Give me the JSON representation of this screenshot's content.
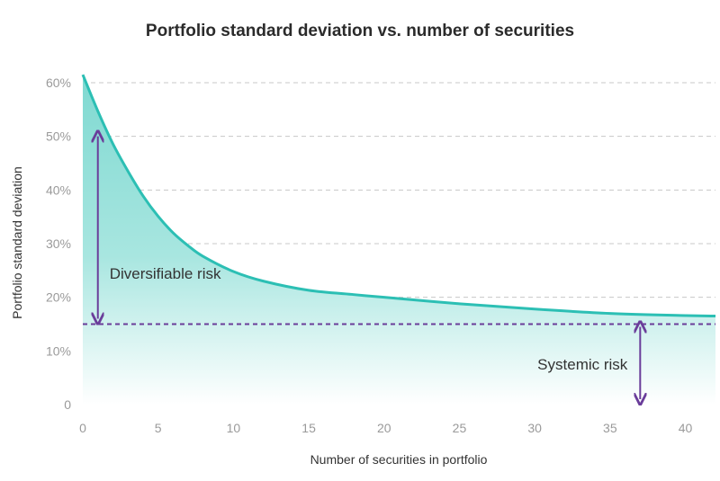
{
  "chart_data": {
    "type": "area",
    "title": "Portfolio standard deviation vs. number of securities",
    "xlabel": "Number of securities in portfolio",
    "ylabel": "Portfolio standard deviation",
    "xlim": [
      0,
      42
    ],
    "ylim": [
      0,
      60
    ],
    "x_ticks": [
      0,
      5,
      10,
      15,
      20,
      25,
      30,
      35,
      40
    ],
    "x_tick_labels": [
      "0",
      "5",
      "10",
      "15",
      "20",
      "25",
      "30",
      "35",
      "40"
    ],
    "y_ticks": [
      0,
      10,
      20,
      30,
      40,
      50,
      60
    ],
    "y_tick_labels": [
      "0",
      "10%",
      "20%",
      "30%",
      "40%",
      "50%",
      "60%"
    ],
    "grid": "horizontal-dashed",
    "series": [
      {
        "x": [
          0,
          1,
          2,
          3,
          4,
          5,
          6,
          7,
          8,
          10,
          12,
          15,
          18,
          20,
          25,
          30,
          35,
          40,
          42
        ],
        "values": [
          61.5,
          54.7,
          48.6,
          43.5,
          38.9,
          35.1,
          32.0,
          29.6,
          27.6,
          24.8,
          23.0,
          21.3,
          20.5,
          20.0,
          18.8,
          17.8,
          17.0,
          16.6,
          16.5
        ]
      }
    ],
    "systemic_level": 15,
    "annotations": [
      {
        "text": "Diversifiable risk",
        "arrow_x": 1,
        "arrow_from": 50,
        "arrow_to": 16
      },
      {
        "text": "Systemic risk",
        "arrow_x": 37,
        "arrow_from": 14.5,
        "arrow_to": 1
      }
    ],
    "colors": {
      "curve": "#2cbfb4",
      "fill_top": "#7fd9d1",
      "fill_bottom": "#ffffff",
      "arrow": "#6a3d9a",
      "systemic_line": "#6a3d9a",
      "grid": "#c8c8c8"
    }
  }
}
